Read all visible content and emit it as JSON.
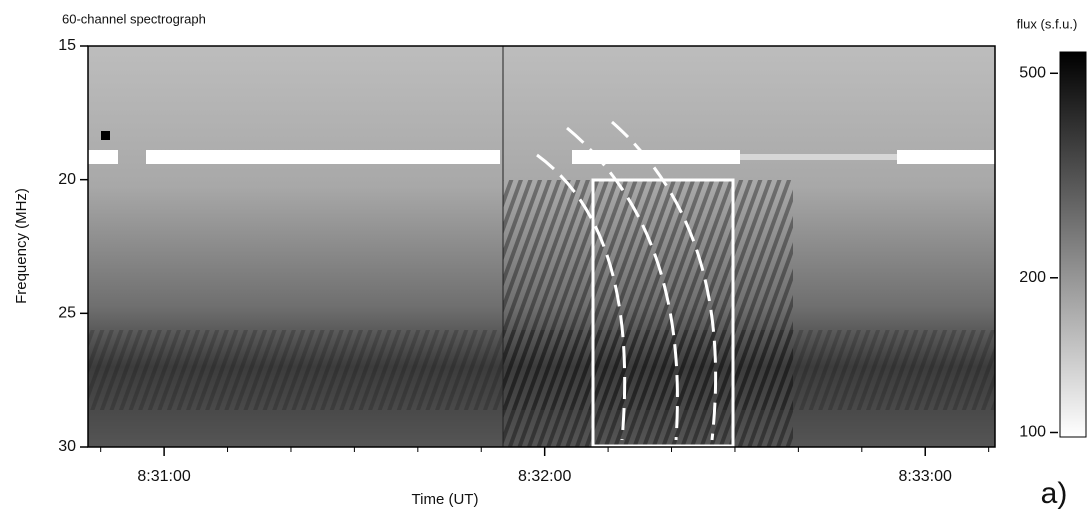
{
  "chart_data": {
    "type": "spectrogram",
    "title": "60-channel spectrograph",
    "xlabel": "Time (UT)",
    "ylabel": "Frequency (MHz)",
    "xlim": [
      30648,
      30791
    ],
    "xticks": [
      {
        "value": 30660,
        "label": "8:31:00"
      },
      {
        "value": 30720,
        "label": "8:32:00"
      },
      {
        "value": 30780,
        "label": "8:33:00"
      }
    ],
    "xminorticks": [
      30650,
      30670,
      30680,
      30690,
      30700,
      30710,
      30730,
      30740,
      30750,
      30760,
      30770,
      30790
    ],
    "ylim": [
      15,
      30
    ],
    "yticks": [
      15,
      20,
      25,
      30
    ],
    "y_inverted": true,
    "colorbar": {
      "label": "flux (s.f.u.)",
      "lim": [
        98,
        550
      ],
      "ticks": [
        100,
        200,
        500
      ],
      "log": true,
      "colors": [
        "#ffffff",
        "#000000"
      ]
    },
    "annotation": "a)"
  }
}
